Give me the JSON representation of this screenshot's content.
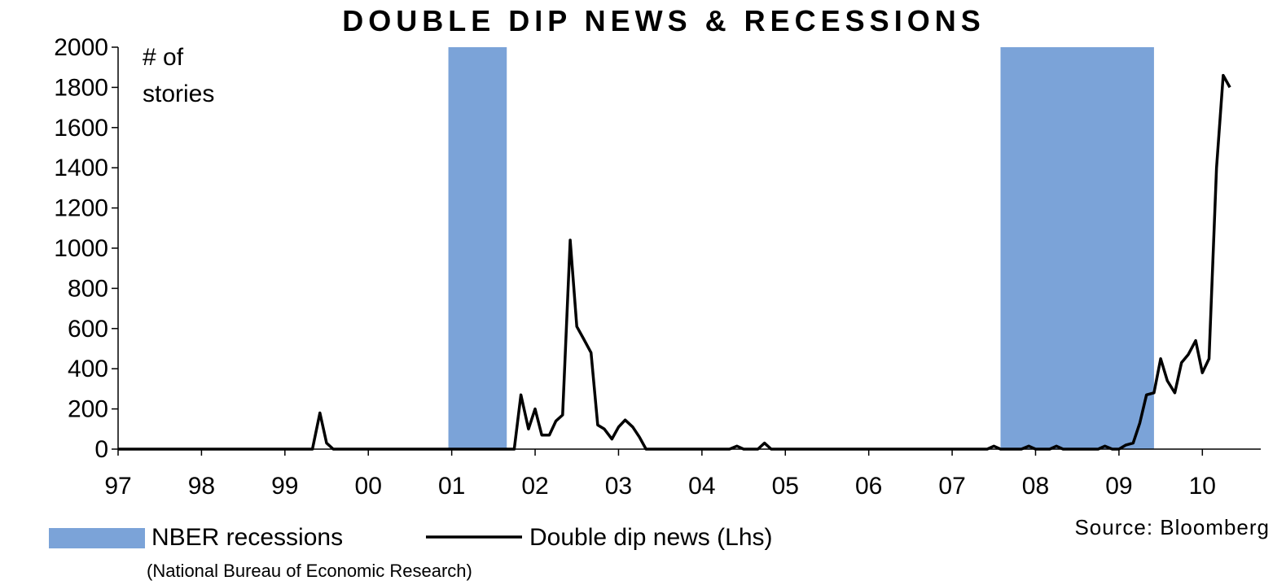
{
  "chart_data": {
    "type": "line",
    "title": "DOUBLE DIP NEWS & RECESSIONS",
    "y_unit_label": [
      "# of",
      "stories"
    ],
    "ylim": [
      0,
      2000
    ],
    "yticks": [
      0,
      200,
      400,
      600,
      800,
      1000,
      1200,
      1400,
      1600,
      1800,
      2000
    ],
    "xlim": [
      1997,
      2010.7
    ],
    "xticks": [
      {
        "value": 1997,
        "label": "97"
      },
      {
        "value": 1998,
        "label": "98"
      },
      {
        "value": 1999,
        "label": "99"
      },
      {
        "value": 2000,
        "label": "00"
      },
      {
        "value": 2001,
        "label": "01"
      },
      {
        "value": 2002,
        "label": "02"
      },
      {
        "value": 2003,
        "label": "03"
      },
      {
        "value": 2004,
        "label": "04"
      },
      {
        "value": 2005,
        "label": "05"
      },
      {
        "value": 2006,
        "label": "06"
      },
      {
        "value": 2007,
        "label": "07"
      },
      {
        "value": 2008,
        "label": "08"
      },
      {
        "value": 2009,
        "label": "09"
      },
      {
        "value": 2010,
        "label": "10"
      }
    ],
    "recessions": [
      {
        "start": 2000.96,
        "end": 2001.66
      },
      {
        "start": 2007.58,
        "end": 2009.42
      }
    ],
    "recession_color": "#7BA3D8",
    "line_color": "#000000",
    "series": [
      {
        "name": "Double dip news (Lhs)",
        "points": [
          [
            1997.0,
            0
          ],
          [
            1999.33,
            0
          ],
          [
            1999.42,
            180
          ],
          [
            1999.5,
            30
          ],
          [
            1999.58,
            0
          ],
          [
            2001.75,
            0
          ],
          [
            2001.83,
            270
          ],
          [
            2001.92,
            100
          ],
          [
            2002.0,
            200
          ],
          [
            2002.08,
            70
          ],
          [
            2002.17,
            70
          ],
          [
            2002.25,
            140
          ],
          [
            2002.33,
            170
          ],
          [
            2002.42,
            1040
          ],
          [
            2002.5,
            610
          ],
          [
            2002.58,
            550
          ],
          [
            2002.67,
            480
          ],
          [
            2002.75,
            120
          ],
          [
            2002.83,
            100
          ],
          [
            2002.92,
            50
          ],
          [
            2003.0,
            110
          ],
          [
            2003.08,
            145
          ],
          [
            2003.17,
            110
          ],
          [
            2003.25,
            60
          ],
          [
            2003.33,
            0
          ],
          [
            2004.33,
            0
          ],
          [
            2004.42,
            15
          ],
          [
            2004.5,
            0
          ],
          [
            2004.67,
            0
          ],
          [
            2004.75,
            30
          ],
          [
            2004.83,
            0
          ],
          [
            2007.42,
            0
          ],
          [
            2007.5,
            15
          ],
          [
            2007.58,
            0
          ],
          [
            2007.83,
            0
          ],
          [
            2007.92,
            15
          ],
          [
            2008.0,
            0
          ],
          [
            2008.17,
            0
          ],
          [
            2008.25,
            15
          ],
          [
            2008.33,
            0
          ],
          [
            2008.75,
            0
          ],
          [
            2008.83,
            15
          ],
          [
            2008.92,
            0
          ],
          [
            2009.0,
            0
          ],
          [
            2009.08,
            20
          ],
          [
            2009.17,
            30
          ],
          [
            2009.25,
            130
          ],
          [
            2009.33,
            270
          ],
          [
            2009.42,
            280
          ],
          [
            2009.5,
            450
          ],
          [
            2009.58,
            340
          ],
          [
            2009.67,
            280
          ],
          [
            2009.75,
            430
          ],
          [
            2009.83,
            470
          ],
          [
            2009.92,
            540
          ],
          [
            2010.0,
            380
          ],
          [
            2010.08,
            450
          ],
          [
            2010.17,
            1400
          ],
          [
            2010.25,
            1860
          ],
          [
            2010.33,
            1800
          ]
        ]
      }
    ],
    "legend": [
      {
        "type": "box",
        "label": "NBER recessions"
      },
      {
        "type": "line",
        "label": "Double dip news (Lhs)"
      }
    ],
    "legend_note": "(National Bureau of Economic Research)",
    "source": "Source: Bloomberg"
  }
}
